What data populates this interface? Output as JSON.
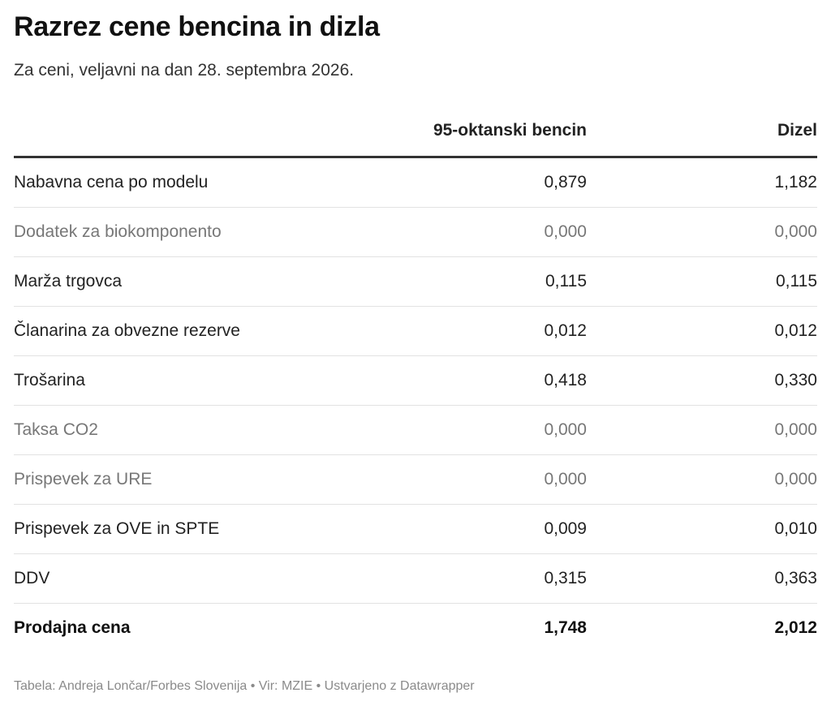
{
  "title": "Razrez cene bencina in dizla",
  "subtitle": "Za ceni, veljavni na dan 28. septembra 2026.",
  "footer": "Tabela: Andreja Lončar/Forbes Slovenija • Vir: MZIE • Ustvarjeno z Datawrapper",
  "colors": {
    "text": "#222222",
    "muted_text": "#777777",
    "header_rule": "#333333",
    "row_rule": "#e2e2e2",
    "footer_text": "#8a8a8a"
  },
  "chart_data": {
    "type": "table",
    "title": "Razrez cene bencina in dizla",
    "subtitle": "Za ceni, veljavni na dan 28. septembra 2026.",
    "columns": [
      "",
      "95-oktanski bencin",
      "Dizel"
    ],
    "rows": [
      {
        "label": "Nabavna cena po modelu",
        "petrol": "0,879",
        "diesel": "1,182",
        "muted": false,
        "total": false
      },
      {
        "label": "Dodatek za biokomponento",
        "petrol": "0,000",
        "diesel": "0,000",
        "muted": true,
        "total": false
      },
      {
        "label": "Marža trgovca",
        "petrol": "0,115",
        "diesel": "0,115",
        "muted": false,
        "total": false
      },
      {
        "label": "Članarina za obvezne rezerve",
        "petrol": "0,012",
        "diesel": "0,012",
        "muted": false,
        "total": false
      },
      {
        "label": "Trošarina",
        "petrol": "0,418",
        "diesel": "0,330",
        "muted": false,
        "total": false
      },
      {
        "label": "Taksa CO2",
        "petrol": "0,000",
        "diesel": "0,000",
        "muted": true,
        "total": false
      },
      {
        "label": "Prispevek za URE",
        "petrol": "0,000",
        "diesel": "0,000",
        "muted": true,
        "total": false
      },
      {
        "label": "Prispevek za OVE in SPTE",
        "petrol": "0,009",
        "diesel": "0,010",
        "muted": false,
        "total": false
      },
      {
        "label": "DDV",
        "petrol": "0,315",
        "diesel": "0,363",
        "muted": false,
        "total": false
      },
      {
        "label": "Prodajna cena",
        "petrol": "1,748",
        "diesel": "2,012",
        "muted": false,
        "total": true
      }
    ]
  }
}
